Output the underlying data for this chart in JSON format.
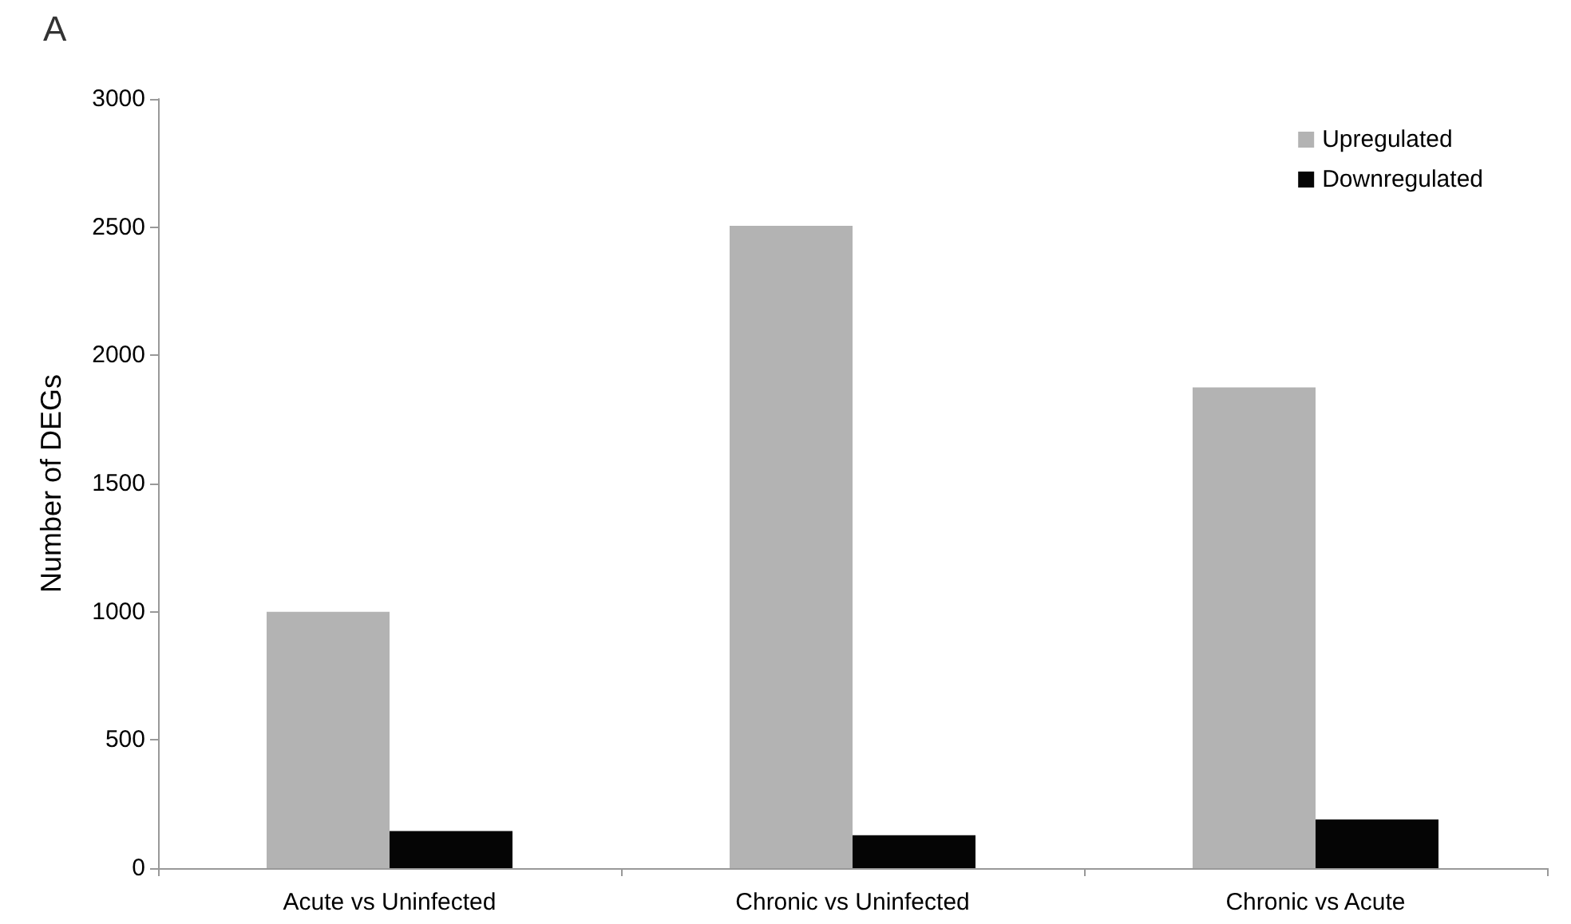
{
  "chart_data": {
    "type": "bar",
    "title": "A",
    "ylabel": "Number of DEGs",
    "categories": [
      "Acute vs Uninfected",
      "Chronic vs Uninfected",
      "Chronic vs Acute"
    ],
    "series": [
      {
        "name": "Upregulated",
        "color": "#b3b3b3",
        "values": [
          1000,
          2505,
          1875
        ]
      },
      {
        "name": "Downregulated",
        "color": "#050505",
        "values": [
          145,
          128,
          190
        ]
      }
    ],
    "ylim": [
      0,
      3000
    ],
    "yticks": [
      0,
      500,
      1000,
      1500,
      2000,
      2500,
      3000
    ],
    "grid": false,
    "legend": "top right"
  }
}
